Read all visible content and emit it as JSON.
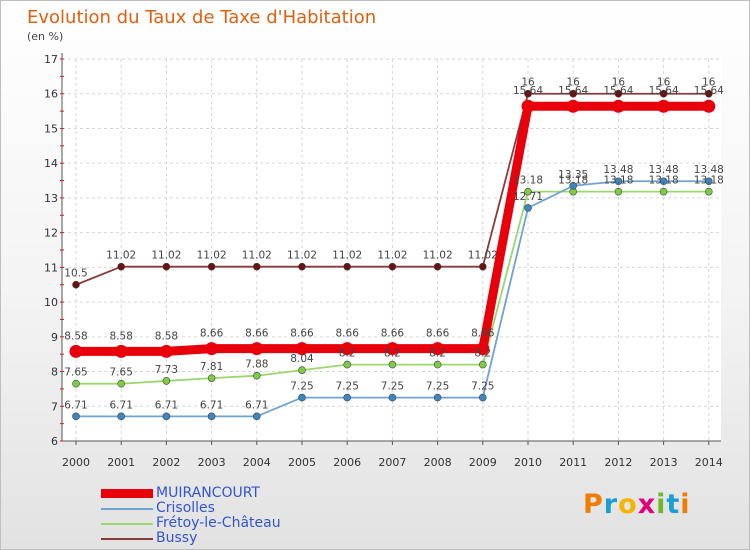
{
  "chart_data": {
    "type": "line",
    "title": "Evolution du Taux de Taxe d'Habitation",
    "ylabel": "(en %)",
    "xlabel": "",
    "ylim": [
      6,
      17
    ],
    "yticks": [
      "6",
      "7",
      "8",
      "9",
      "10",
      "11",
      "12",
      "13",
      "14",
      "15",
      "16",
      "17"
    ],
    "categories": [
      "2000",
      "2001",
      "2002",
      "2003",
      "2004",
      "2005",
      "2006",
      "2007",
      "2008",
      "2009",
      "2010",
      "2011",
      "2012",
      "2013",
      "2014"
    ],
    "series": [
      {
        "name": "MUIRANCOURT",
        "color": "#e8000b",
        "values": [
          8.58,
          8.58,
          8.58,
          8.66,
          8.66,
          8.66,
          8.66,
          8.66,
          8.66,
          8.66,
          15.64,
          15.64,
          15.64,
          15.64,
          15.64
        ],
        "labels": [
          "8.58",
          "8.58",
          "8.58",
          "8.66",
          "8.66",
          "8.66",
          "8.66",
          "8.66",
          "8.66",
          "8.66",
          "15.64",
          "15.64",
          "15.64",
          "15.64",
          "15.64"
        ]
      },
      {
        "name": "Crisolles",
        "color": "#6fa3d0",
        "marker": "#3b86c4",
        "values": [
          6.71,
          6.71,
          6.71,
          6.71,
          6.71,
          7.25,
          7.25,
          7.25,
          7.25,
          7.25,
          12.71,
          13.35,
          13.48,
          13.48,
          13.48
        ],
        "labels": [
          "6.71",
          "6.71",
          "6.71",
          "6.71",
          "6.71",
          "7.25",
          "7.25",
          "7.25",
          "7.25",
          "7.25",
          "12.71",
          "13.35",
          "13.48",
          "13.48",
          "13.48"
        ]
      },
      {
        "name": "Frétoy-le-Château",
        "color": "#9ad76c",
        "marker": "#7ccc44",
        "values": [
          7.65,
          7.65,
          7.73,
          7.81,
          7.88,
          8.04,
          8.2,
          8.2,
          8.2,
          8.2,
          13.18,
          13.18,
          13.18,
          13.18,
          13.18
        ],
        "labels": [
          "7.65",
          "7.65",
          "7.73",
          "7.81",
          "7.88",
          "8.04",
          "8.2",
          "8.2",
          "8.2",
          "8.2",
          "13.18",
          "13.18",
          "13.18",
          "13.18",
          "13.18"
        ]
      },
      {
        "name": "Bussy",
        "color": "#8b3a3a",
        "marker": "#6b1111",
        "values": [
          10.5,
          11.02,
          11.02,
          11.02,
          11.02,
          11.02,
          11.02,
          11.02,
          11.02,
          11.02,
          16,
          16,
          16,
          16,
          16
        ],
        "labels": [
          "10.5",
          "11.02",
          "11.02",
          "11.02",
          "11.02",
          "11.02",
          "11.02",
          "11.02",
          "11.02",
          "11.02",
          "16",
          "16",
          "16",
          "16",
          "16"
        ]
      }
    ],
    "legend_position": "bottom-left"
  },
  "logo": {
    "letters": [
      "P",
      "r",
      "o",
      "x",
      "i",
      "t",
      "i"
    ],
    "colors": [
      "#f07d00",
      "#1a9fd4",
      "#f4b400",
      "#e4007c",
      "#6cb92d",
      "#1a9fd4",
      "#f07d00"
    ]
  }
}
